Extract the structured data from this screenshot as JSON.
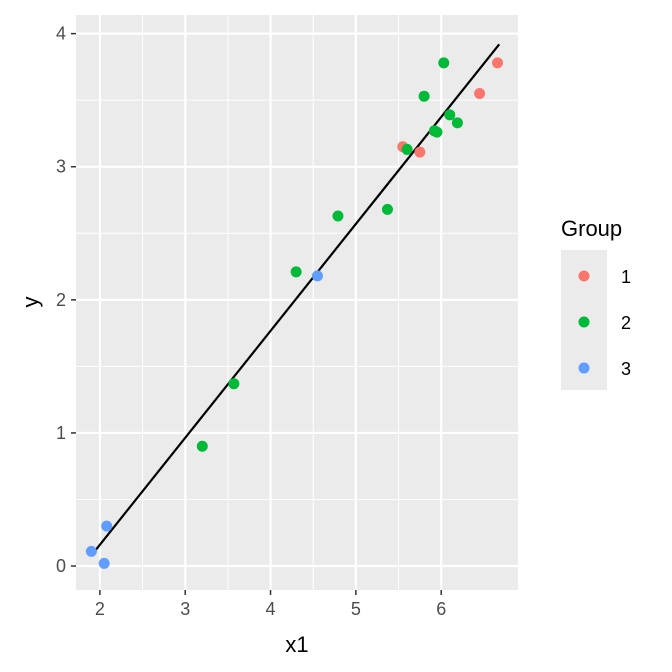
{
  "chart_data": {
    "type": "scatter",
    "title": "",
    "xlabel": "x1",
    "ylabel": "y",
    "xlim": [
      1.72,
      6.9
    ],
    "ylim": [
      -0.18,
      4.14
    ],
    "x_ticks": [
      2,
      3,
      4,
      5,
      6
    ],
    "y_ticks": [
      0,
      1,
      2,
      3,
      4
    ],
    "x_tick_labels": [
      "2",
      "3",
      "4",
      "5",
      "6"
    ],
    "y_tick_labels": [
      "0",
      "1",
      "2",
      "3",
      "4"
    ],
    "grid": true,
    "legend": {
      "title": "Group",
      "position": "right"
    },
    "series": [
      {
        "name": "1",
        "color": "#F8766D",
        "points": [
          [
            5.55,
            3.15
          ],
          [
            5.75,
            3.11
          ],
          [
            6.45,
            3.55
          ],
          [
            6.66,
            3.78
          ]
        ]
      },
      {
        "name": "2",
        "color": "#00BA38",
        "points": [
          [
            3.2,
            0.9
          ],
          [
            3.57,
            1.37
          ],
          [
            4.3,
            2.21
          ],
          [
            4.79,
            2.63
          ],
          [
            5.37,
            2.68
          ],
          [
            5.6,
            3.13
          ],
          [
            5.8,
            3.53
          ],
          [
            5.92,
            3.27
          ],
          [
            5.95,
            3.26
          ],
          [
            6.03,
            3.78
          ],
          [
            6.1,
            3.39
          ],
          [
            6.19,
            3.33
          ]
        ]
      },
      {
        "name": "3",
        "color": "#619CFF",
        "points": [
          [
            1.9,
            0.11
          ],
          [
            2.05,
            0.02
          ],
          [
            2.08,
            0.3
          ],
          [
            4.55,
            2.18
          ]
        ]
      }
    ],
    "fit_line": {
      "color": "#000000",
      "from": [
        1.9,
        0.08
      ],
      "to": [
        6.68,
        3.92
      ]
    }
  }
}
